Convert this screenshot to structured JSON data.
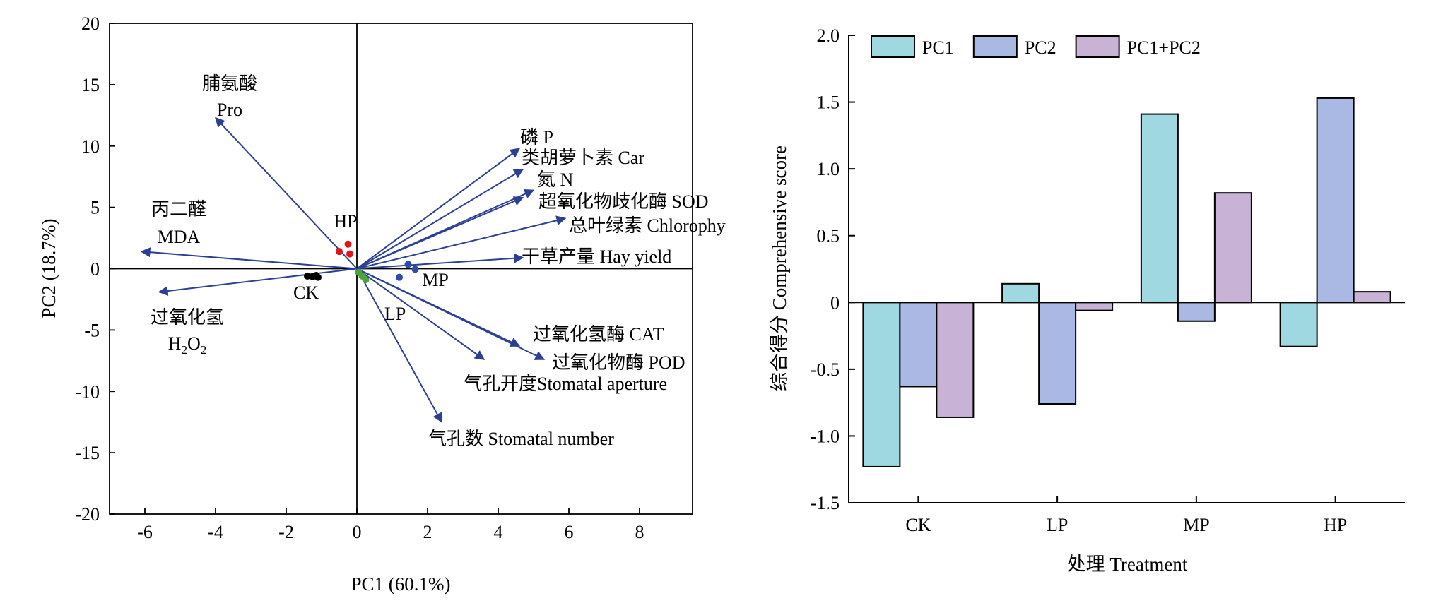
{
  "colors": {
    "arrow": "#2b3f93",
    "CK": "#000000",
    "HP": "#e0141b",
    "MP": "#2f4bb0",
    "LP": "#4aa63a",
    "PC1": "#9fd8e0",
    "PC2": "#a9b9e4",
    "PC1+PC2": "#c8b3d6"
  },
  "chart_data": [
    {
      "type": "scatter",
      "subtype": "biplot",
      "xlabel": "PC1 (60.1%)",
      "ylabel": "PC2 (18.7%)",
      "xlim": [
        -7,
        9.5
      ],
      "ylim": [
        -20,
        20
      ],
      "xticks": [
        "-6",
        "-4",
        "-2",
        "0",
        "2",
        "4",
        "6",
        "8"
      ],
      "xtick_values": [
        -6,
        -4,
        -2,
        0,
        2,
        4,
        6,
        8
      ],
      "yticks": [
        "20",
        "15",
        "10",
        "5",
        "0",
        "-5",
        "-10",
        "-15",
        "-20"
      ],
      "ytick_values": [
        20,
        15,
        10,
        5,
        0,
        -5,
        -10,
        -15,
        -20
      ],
      "zero_lines": true,
      "vectors": [
        {
          "zh": "脯氨酸",
          "en": "Pro",
          "x": -4.0,
          "y": 12.3
        },
        {
          "zh": "丙二醛",
          "en": "MDA",
          "x": -6.1,
          "y": 1.4
        },
        {
          "zh": "过氧化氢",
          "en": "H",
          "x": -5.6,
          "y": -1.9
        },
        {
          "label": "磷 P",
          "x": 4.6,
          "y": 9.8
        },
        {
          "label": "类胡萝卜素 Car",
          "x": 4.7,
          "y": 8.1
        },
        {
          "label": "氮 N",
          "x": 5.0,
          "y": 6.4
        },
        {
          "label": "超氧化物歧化酶 SOD",
          "x": 4.7,
          "y": 5.8
        },
        {
          "label": "总叶绿素 Chlorophy",
          "x": 5.9,
          "y": 4.1
        },
        {
          "label": "干草产量 Hay yield",
          "x": 4.7,
          "y": 0.9
        },
        {
          "label": "过氧化氢酶 CAT",
          "x": 4.6,
          "y": -6.3
        },
        {
          "label": "过氧化物酶 POD",
          "x": 5.3,
          "y": -7.4
        },
        {
          "label": "气孔开度Stomatal aperture",
          "x": 3.6,
          "y": -7.4
        },
        {
          "label": "气孔数 Stomatal number",
          "x": 2.4,
          "y": -12.5
        }
      ],
      "h2o2_label": {
        "main": "H",
        "sub1": "2",
        "mid": "O",
        "sub2": "2"
      },
      "groups": [
        {
          "name": "CK",
          "points": [
            [
              -1.4,
              -0.6
            ],
            [
              -1.15,
              -0.55
            ],
            [
              -1.1,
              -0.7
            ],
            [
              -1.25,
              -0.65
            ]
          ]
        },
        {
          "name": "HP",
          "points": [
            [
              -0.5,
              1.4
            ],
            [
              -0.25,
              2.0
            ],
            [
              -0.2,
              1.2
            ]
          ]
        },
        {
          "name": "MP",
          "points": [
            [
              1.45,
              0.35
            ],
            [
              1.65,
              -0.05
            ],
            [
              1.2,
              -0.7
            ]
          ]
        },
        {
          "name": "LP",
          "points": [
            [
              0.05,
              -0.3
            ],
            [
              0.15,
              -0.6
            ],
            [
              0.25,
              -0.9
            ]
          ]
        }
      ]
    },
    {
      "type": "bar",
      "categories": [
        "CK",
        "LP",
        "MP",
        "HP"
      ],
      "series": [
        {
          "name": "PC1",
          "values": [
            -1.23,
            0.14,
            1.41,
            -0.33
          ]
        },
        {
          "name": "PC2",
          "values": [
            -0.63,
            -0.76,
            -0.14,
            1.53
          ]
        },
        {
          "name": "PC1+PC2",
          "values": [
            -0.86,
            -0.06,
            0.82,
            0.08
          ]
        }
      ],
      "xlabel": "处理 Treatment",
      "ylabel": "综合得分 Comprehensive score",
      "ylim": [
        -1.5,
        2.0
      ],
      "yticks": [
        "2.0",
        "1.5",
        "1.0",
        "0.5",
        "0",
        "-0.5",
        "-1.0",
        "-1.5"
      ],
      "ytick_values": [
        2.0,
        1.5,
        1.0,
        0.5,
        0,
        -0.5,
        -1.0,
        -1.5
      ],
      "legend": "top-left"
    }
  ]
}
